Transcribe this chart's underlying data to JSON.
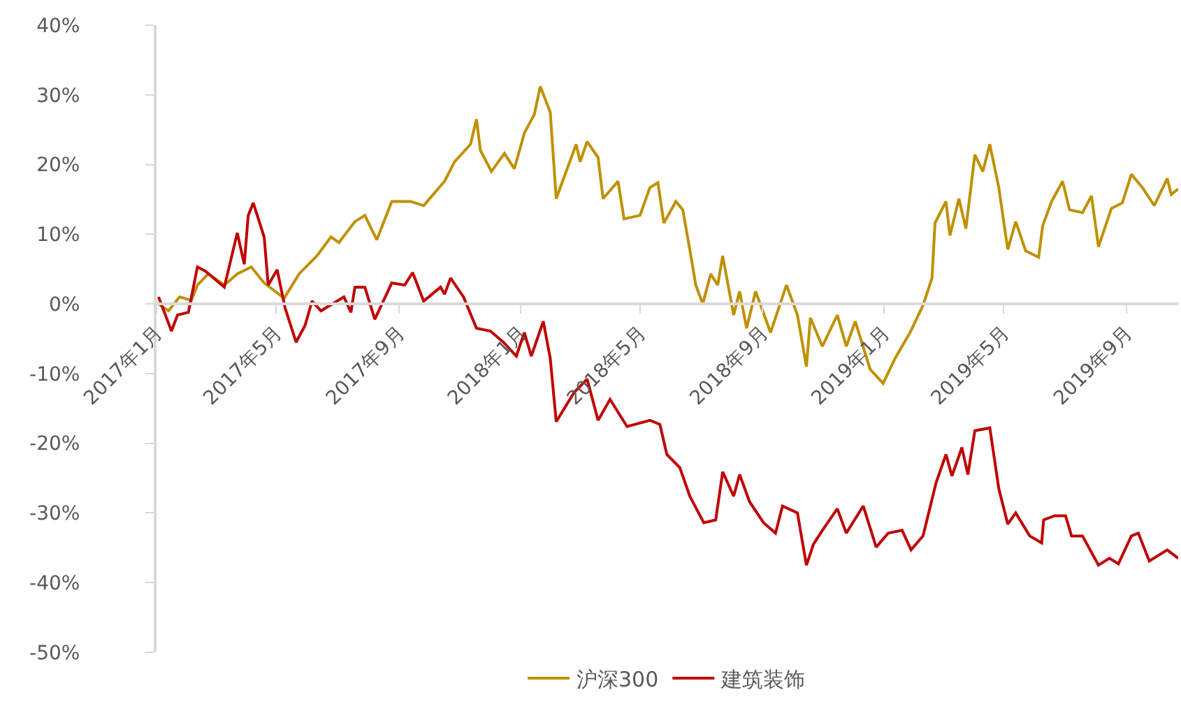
{
  "chart_data": {
    "type": "line",
    "xlim": [
      "2017-01-01",
      "2019-10-23"
    ],
    "xticks": [
      {
        "value": "2017-01-01",
        "label": "2017年1月"
      },
      {
        "value": "2017-05-01",
        "label": "2017年5月"
      },
      {
        "value": "2017-09-01",
        "label": "2017年9月"
      },
      {
        "value": "2018-01-01",
        "label": "2018年1月"
      },
      {
        "value": "2018-05-01",
        "label": "2018年5月"
      },
      {
        "value": "2018-09-01",
        "label": "2018年9月"
      },
      {
        "value": "2019-01-01",
        "label": "2019年1月"
      },
      {
        "value": "2019-05-01",
        "label": "2019年5月"
      },
      {
        "value": "2019-09-01",
        "label": "2019年9月"
      }
    ],
    "ylim": [
      -50,
      40
    ],
    "yticks": [
      {
        "value": -50,
        "label": "-50%"
      },
      {
        "value": -40,
        "label": "-40%"
      },
      {
        "value": -30,
        "label": "-30%"
      },
      {
        "value": -20,
        "label": "-20%"
      },
      {
        "value": -10,
        "label": "-10%"
      },
      {
        "value": 0,
        "label": "0%"
      },
      {
        "value": 10,
        "label": "10%"
      },
      {
        "value": 20,
        "label": "20%"
      },
      {
        "value": 30,
        "label": "30%"
      },
      {
        "value": 40,
        "label": "40%"
      }
    ],
    "grid": false,
    "legend": "bottom",
    "marker": "none",
    "line_style": "solid",
    "series": [
      {
        "name": "沪深300",
        "color": "#c09000",
        "x": [
          "2017-01-03",
          "2017-01-13",
          "2017-01-24",
          "2017-02-05",
          "2017-02-11",
          "2017-02-22",
          "2017-03-10",
          "2017-03-23",
          "2017-04-06",
          "2017-04-19",
          "2017-05-09",
          "2017-05-24",
          "2017-06-11",
          "2017-06-25",
          "2017-07-03",
          "2017-07-19",
          "2017-07-29",
          "2017-08-10",
          "2017-08-25",
          "2017-09-13",
          "2017-09-26",
          "2017-10-17",
          "2017-10-27",
          "2017-11-12",
          "2017-11-18",
          "2017-11-22",
          "2017-12-03",
          "2017-12-16",
          "2017-12-26",
          "2018-01-05",
          "2018-01-15",
          "2018-01-21",
          "2018-01-31",
          "2018-02-06",
          "2018-02-17",
          "2018-02-26",
          "2018-03-02",
          "2018-03-09",
          "2018-03-20",
          "2018-03-25",
          "2018-04-09",
          "2018-04-15",
          "2018-05-01",
          "2018-05-11",
          "2018-05-19",
          "2018-05-25",
          "2018-06-06",
          "2018-06-13",
          "2018-06-20",
          "2018-06-26",
          "2018-07-03",
          "2018-07-11",
          "2018-07-18",
          "2018-07-23",
          "2018-08-03",
          "2018-08-09",
          "2018-08-16",
          "2018-08-25",
          "2018-09-09",
          "2018-09-25",
          "2018-10-06",
          "2018-10-15",
          "2018-10-19",
          "2018-10-31",
          "2018-11-15",
          "2018-11-24",
          "2018-12-03",
          "2018-12-18",
          "2018-12-31",
          "2019-01-12",
          "2019-01-27",
          "2019-02-09",
          "2019-02-18",
          "2019-02-21",
          "2019-03-04",
          "2019-03-08",
          "2019-03-17",
          "2019-03-24",
          "2019-04-02",
          "2019-04-10",
          "2019-04-17",
          "2019-04-26",
          "2019-05-05",
          "2019-05-13",
          "2019-05-23",
          "2019-06-05",
          "2019-06-09",
          "2019-06-18",
          "2019-06-29",
          "2019-07-06",
          "2019-07-19",
          "2019-07-28",
          "2019-08-04",
          "2019-08-17",
          "2019-08-28",
          "2019-09-06",
          "2019-09-17",
          "2019-09-29",
          "2019-10-12",
          "2019-10-16",
          "2019-10-23"
        ],
        "values": [
          0,
          -1,
          1,
          0.5,
          2.7,
          4.3,
          2.7,
          4.3,
          5.3,
          3,
          0.8,
          4.3,
          6.9,
          9.6,
          8.8,
          11.8,
          12.7,
          9.2,
          14.7,
          14.7,
          14.1,
          17.6,
          20.4,
          22.9,
          26.5,
          22,
          19,
          21.6,
          19.4,
          24.5,
          27.2,
          31.2,
          27.5,
          15.1,
          19.4,
          22.9,
          20.4,
          23.3,
          21,
          15.1,
          17.6,
          12.2,
          12.7,
          16.7,
          17.4,
          11.6,
          14.7,
          13.5,
          7.8,
          2.7,
          0,
          4.3,
          2.7,
          6.9,
          -1.6,
          1.8,
          -3.5,
          1.8,
          -4.1,
          2.7,
          -1.6,
          -9,
          -2,
          -6.1,
          -1.6,
          -6.1,
          -2.5,
          -9.4,
          -11.4,
          -7.8,
          -4.1,
          -0.2,
          3.7,
          11.6,
          14.7,
          9.8,
          15.1,
          10.8,
          21.4,
          19,
          22.9,
          16.7,
          7.8,
          11.8,
          7.6,
          6.7,
          11.2,
          14.7,
          17.6,
          13.5,
          13.1,
          15.5,
          8.2,
          13.7,
          14.5,
          18.6,
          16.7,
          14.1,
          18,
          15.7,
          16.5
        ]
      },
      {
        "name": "建筑装饰",
        "color": "#c00000",
        "x": [
          "2017-01-03",
          "2017-01-16",
          "2017-01-22",
          "2017-02-02",
          "2017-02-11",
          "2017-02-19",
          "2017-03-10",
          "2017-03-23",
          "2017-03-30",
          "2017-04-03",
          "2017-04-08",
          "2017-04-19",
          "2017-04-23",
          "2017-05-02",
          "2017-05-10",
          "2017-05-21",
          "2017-05-30",
          "2017-06-06",
          "2017-06-15",
          "2017-07-08",
          "2017-07-15",
          "2017-07-19",
          "2017-07-29",
          "2017-08-08",
          "2017-08-25",
          "2017-09-07",
          "2017-09-15",
          "2017-09-26",
          "2017-10-13",
          "2017-10-17",
          "2017-10-23",
          "2017-11-05",
          "2017-11-18",
          "2017-12-02",
          "2017-12-15",
          "2017-12-28",
          "2018-01-05",
          "2018-01-12",
          "2018-01-24",
          "2018-01-31",
          "2018-02-06",
          "2018-02-24",
          "2018-03-09",
          "2018-03-20",
          "2018-04-01",
          "2018-04-18",
          "2018-05-11",
          "2018-05-21",
          "2018-05-28",
          "2018-06-10",
          "2018-06-20",
          "2018-07-04",
          "2018-07-16",
          "2018-07-23",
          "2018-08-03",
          "2018-08-09",
          "2018-08-19",
          "2018-09-02",
          "2018-09-14",
          "2018-09-21",
          "2018-10-06",
          "2018-10-15",
          "2018-10-22",
          "2018-10-31",
          "2018-11-15",
          "2018-11-24",
          "2018-12-11",
          "2018-12-24",
          "2019-01-05",
          "2019-01-19",
          "2019-01-28",
          "2019-02-09",
          "2019-02-22",
          "2019-03-04",
          "2019-03-10",
          "2019-03-20",
          "2019-03-26",
          "2019-04-02",
          "2019-04-17",
          "2019-04-26",
          "2019-05-05",
          "2019-05-13",
          "2019-05-27",
          "2019-06-08",
          "2019-06-10",
          "2019-06-21",
          "2019-07-02",
          "2019-07-08",
          "2019-07-19",
          "2019-08-04",
          "2019-08-15",
          "2019-08-24",
          "2019-09-06",
          "2019-09-13",
          "2019-09-24",
          "2019-10-12",
          "2019-10-23"
        ],
        "values": [
          1,
          -3.9,
          -1.6,
          -1.2,
          5.3,
          4.7,
          2.4,
          10.2,
          5.7,
          12.7,
          14.5,
          9.6,
          2.7,
          4.9,
          -0.6,
          -5.5,
          -3.1,
          0.4,
          -1,
          1,
          -1.2,
          2.4,
          2.4,
          -2.2,
          3,
          2.7,
          4.5,
          0.4,
          2.4,
          1.4,
          3.7,
          1,
          -3.5,
          -3.9,
          -5.5,
          -7.5,
          -4.1,
          -7.5,
          -2.5,
          -7.8,
          -16.9,
          -12.7,
          -10.8,
          -16.7,
          -13.7,
          -17.6,
          -16.7,
          -17.3,
          -21.6,
          -23.5,
          -27.6,
          -31.4,
          -31,
          -24.1,
          -27.6,
          -24.5,
          -28.4,
          -31.4,
          -32.9,
          -29,
          -30,
          -37.5,
          -34.5,
          -32.5,
          -29.4,
          -32.9,
          -29,
          -34.9,
          -32.9,
          -32.5,
          -35.3,
          -33.3,
          -25.7,
          -21.6,
          -24.7,
          -20.6,
          -24.5,
          -18.2,
          -17.8,
          -26.5,
          -31.6,
          -30,
          -33.3,
          -34.3,
          -31,
          -30.4,
          -30.4,
          -33.3,
          -33.3,
          -37.5,
          -36.5,
          -37.3,
          -33.3,
          -32.9,
          -36.9,
          -35.3,
          -36.5
        ]
      }
    ]
  }
}
